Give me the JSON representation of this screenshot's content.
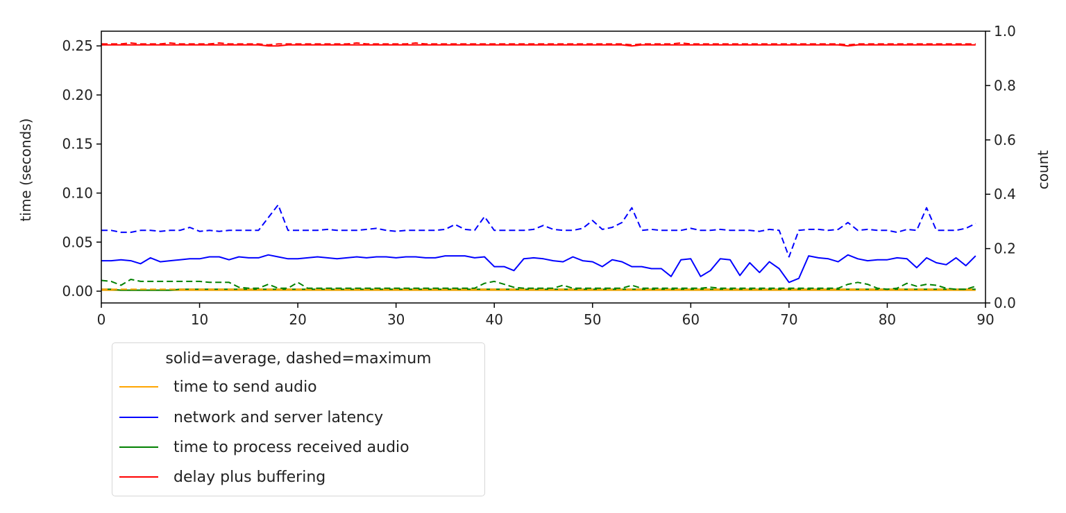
{
  "chart_data": {
    "type": "line",
    "title": "",
    "xlabel": "",
    "ylabel": "time (seconds)",
    "ylabel_right": "count",
    "xlim": [
      0,
      90
    ],
    "ylim": [
      -0.012,
      0.265
    ],
    "ylim_right": [
      0.0,
      1.0
    ],
    "x_ticks": [
      "0",
      "10",
      "20",
      "30",
      "40",
      "50",
      "60",
      "70",
      "80",
      "90"
    ],
    "y_ticks": [
      "0.00",
      "0.05",
      "0.10",
      "0.15",
      "0.20",
      "0.25"
    ],
    "y_ticks_right": [
      "0.0",
      "0.2",
      "0.4",
      "0.6",
      "0.8",
      "1.0"
    ],
    "grid": false,
    "legend_position": "below-left outside",
    "legend_title": "solid=average, dashed=maximum",
    "x": [
      0,
      1,
      2,
      3,
      4,
      5,
      6,
      7,
      8,
      9,
      10,
      11,
      12,
      13,
      14,
      15,
      16,
      17,
      18,
      19,
      20,
      21,
      22,
      23,
      24,
      25,
      26,
      27,
      28,
      29,
      30,
      31,
      32,
      33,
      34,
      35,
      36,
      37,
      38,
      39,
      40,
      41,
      42,
      43,
      44,
      45,
      46,
      47,
      48,
      49,
      50,
      51,
      52,
      53,
      54,
      55,
      56,
      57,
      58,
      59,
      60,
      61,
      62,
      63,
      64,
      65,
      66,
      67,
      68,
      69,
      70,
      71,
      72,
      73,
      74,
      75,
      76,
      77,
      78,
      79,
      80,
      81,
      82,
      83,
      84,
      85,
      86,
      87,
      88,
      89
    ],
    "series": [
      {
        "name": "time to send audio",
        "style": "solid",
        "stat": "average",
        "color": "#ffa500",
        "values": [
          0.001,
          0.001,
          0.001,
          0.001,
          0.001,
          0.001,
          0.001,
          0.001,
          0.001,
          0.001,
          0.001,
          0.001,
          0.001,
          0.001,
          0.001,
          0.001,
          0.001,
          0.001,
          0.001,
          0.001,
          0.001,
          0.001,
          0.001,
          0.001,
          0.001,
          0.001,
          0.001,
          0.001,
          0.001,
          0.001,
          0.001,
          0.001,
          0.001,
          0.001,
          0.001,
          0.001,
          0.001,
          0.001,
          0.001,
          0.001,
          0.001,
          0.001,
          0.001,
          0.001,
          0.001,
          0.001,
          0.001,
          0.001,
          0.001,
          0.001,
          0.001,
          0.001,
          0.001,
          0.001,
          0.001,
          0.001,
          0.001,
          0.001,
          0.001,
          0.001,
          0.001,
          0.001,
          0.001,
          0.001,
          0.001,
          0.001,
          0.001,
          0.001,
          0.001,
          0.001,
          0.001,
          0.001,
          0.001,
          0.001,
          0.001,
          0.001,
          0.001,
          0.001,
          0.001,
          0.001,
          0.001,
          0.001,
          0.001,
          0.001,
          0.001,
          0.001,
          0.001,
          0.001,
          0.001,
          0.001
        ]
      },
      {
        "name": "network and server latency",
        "style": "solid",
        "stat": "average",
        "color": "#0000ff",
        "values": [
          0.031,
          0.031,
          0.032,
          0.031,
          0.028,
          0.034,
          0.03,
          0.031,
          0.032,
          0.033,
          0.033,
          0.035,
          0.035,
          0.032,
          0.035,
          0.034,
          0.034,
          0.037,
          0.035,
          0.033,
          0.033,
          0.034,
          0.035,
          0.034,
          0.033,
          0.034,
          0.035,
          0.034,
          0.035,
          0.035,
          0.034,
          0.035,
          0.035,
          0.034,
          0.034,
          0.036,
          0.036,
          0.036,
          0.034,
          0.035,
          0.025,
          0.025,
          0.021,
          0.033,
          0.034,
          0.033,
          0.031,
          0.03,
          0.035,
          0.031,
          0.03,
          0.025,
          0.032,
          0.03,
          0.025,
          0.025,
          0.023,
          0.023,
          0.015,
          0.032,
          0.033,
          0.015,
          0.021,
          0.033,
          0.032,
          0.016,
          0.029,
          0.019,
          0.03,
          0.023,
          0.009,
          0.013,
          0.036,
          0.034,
          0.033,
          0.03,
          0.037,
          0.033,
          0.031,
          0.032,
          0.032,
          0.034,
          0.033,
          0.024,
          0.034,
          0.029,
          0.027,
          0.034,
          0.026,
          0.036
        ]
      },
      {
        "name": "time to process received audio",
        "style": "solid",
        "stat": "average",
        "color": "#008000",
        "values": [
          0.002,
          0.002,
          0.001,
          0.001,
          0.001,
          0.001,
          0.001,
          0.001,
          0.002,
          0.002,
          0.002,
          0.002,
          0.002,
          0.002,
          0.002,
          0.002,
          0.002,
          0.002,
          0.002,
          0.002,
          0.002,
          0.002,
          0.002,
          0.002,
          0.002,
          0.002,
          0.002,
          0.002,
          0.002,
          0.002,
          0.002,
          0.002,
          0.002,
          0.002,
          0.002,
          0.002,
          0.002,
          0.002,
          0.002,
          0.002,
          0.002,
          0.002,
          0.002,
          0.002,
          0.002,
          0.002,
          0.002,
          0.002,
          0.002,
          0.002,
          0.002,
          0.002,
          0.002,
          0.002,
          0.002,
          0.002,
          0.002,
          0.002,
          0.002,
          0.002,
          0.002,
          0.002,
          0.002,
          0.002,
          0.002,
          0.002,
          0.002,
          0.002,
          0.002,
          0.002,
          0.002,
          0.002,
          0.002,
          0.002,
          0.002,
          0.002,
          0.002,
          0.002,
          0.002,
          0.002,
          0.002,
          0.002,
          0.002,
          0.002,
          0.002,
          0.002,
          0.002,
          0.002,
          0.002,
          0.002
        ]
      },
      {
        "name": "delay plus buffering",
        "style": "solid",
        "stat": "average",
        "color": "#ff0000",
        "values": [
          0.251,
          0.251,
          0.251,
          0.251,
          0.251,
          0.251,
          0.251,
          0.251,
          0.251,
          0.251,
          0.251,
          0.251,
          0.251,
          0.251,
          0.251,
          0.251,
          0.251,
          0.25,
          0.25,
          0.251,
          0.251,
          0.251,
          0.251,
          0.251,
          0.251,
          0.251,
          0.251,
          0.251,
          0.251,
          0.251,
          0.251,
          0.251,
          0.251,
          0.251,
          0.251,
          0.251,
          0.251,
          0.251,
          0.251,
          0.251,
          0.251,
          0.251,
          0.251,
          0.251,
          0.251,
          0.251,
          0.251,
          0.251,
          0.251,
          0.251,
          0.251,
          0.251,
          0.251,
          0.251,
          0.25,
          0.251,
          0.251,
          0.251,
          0.251,
          0.251,
          0.251,
          0.251,
          0.251,
          0.251,
          0.251,
          0.251,
          0.251,
          0.251,
          0.251,
          0.251,
          0.251,
          0.251,
          0.251,
          0.251,
          0.251,
          0.251,
          0.25,
          0.251,
          0.251,
          0.251,
          0.251,
          0.251,
          0.251,
          0.251,
          0.251,
          0.251,
          0.251,
          0.251,
          0.251,
          0.251
        ]
      },
      {
        "name": "time to send audio (max)",
        "style": "dashed",
        "stat": "maximum",
        "color": "#ffa500",
        "values": [
          0.002,
          0.002,
          0.002,
          0.002,
          0.002,
          0.002,
          0.002,
          0.002,
          0.002,
          0.002,
          0.002,
          0.002,
          0.002,
          0.002,
          0.002,
          0.002,
          0.002,
          0.002,
          0.002,
          0.002,
          0.002,
          0.002,
          0.002,
          0.002,
          0.002,
          0.002,
          0.002,
          0.002,
          0.002,
          0.002,
          0.002,
          0.002,
          0.002,
          0.002,
          0.002,
          0.002,
          0.002,
          0.002,
          0.002,
          0.002,
          0.002,
          0.002,
          0.002,
          0.002,
          0.002,
          0.002,
          0.002,
          0.002,
          0.002,
          0.002,
          0.002,
          0.002,
          0.002,
          0.002,
          0.002,
          0.002,
          0.002,
          0.002,
          0.002,
          0.002,
          0.002,
          0.002,
          0.002,
          0.002,
          0.002,
          0.002,
          0.002,
          0.002,
          0.002,
          0.002,
          0.002,
          0.002,
          0.002,
          0.002,
          0.002,
          0.002,
          0.002,
          0.002,
          0.002,
          0.002,
          0.002,
          0.002,
          0.002,
          0.002,
          0.002,
          0.002,
          0.002,
          0.002,
          0.002,
          0.002
        ]
      },
      {
        "name": "network and server latency (max)",
        "style": "dashed",
        "stat": "maximum",
        "color": "#0000ff",
        "values": [
          0.062,
          0.062,
          0.06,
          0.06,
          0.062,
          0.062,
          0.061,
          0.062,
          0.062,
          0.065,
          0.061,
          0.062,
          0.061,
          0.062,
          0.062,
          0.062,
          0.062,
          0.075,
          0.088,
          0.062,
          0.062,
          0.062,
          0.062,
          0.063,
          0.062,
          0.062,
          0.062,
          0.063,
          0.064,
          0.062,
          0.061,
          0.062,
          0.062,
          0.062,
          0.062,
          0.063,
          0.068,
          0.063,
          0.062,
          0.076,
          0.062,
          0.062,
          0.062,
          0.062,
          0.063,
          0.067,
          0.063,
          0.062,
          0.062,
          0.064,
          0.072,
          0.063,
          0.065,
          0.07,
          0.085,
          0.062,
          0.063,
          0.062,
          0.062,
          0.062,
          0.064,
          0.062,
          0.062,
          0.063,
          0.062,
          0.062,
          0.062,
          0.061,
          0.063,
          0.062,
          0.035,
          0.062,
          0.063,
          0.063,
          0.062,
          0.063,
          0.07,
          0.062,
          0.063,
          0.062,
          0.062,
          0.06,
          0.063,
          0.062,
          0.085,
          0.062,
          0.062,
          0.062,
          0.064,
          0.069
        ]
      },
      {
        "name": "time to process received audio (max)",
        "style": "dashed",
        "stat": "maximum",
        "color": "#008000",
        "values": [
          0.011,
          0.01,
          0.006,
          0.012,
          0.01,
          0.01,
          0.01,
          0.01,
          0.01,
          0.01,
          0.01,
          0.009,
          0.009,
          0.009,
          0.004,
          0.003,
          0.003,
          0.007,
          0.003,
          0.003,
          0.009,
          0.003,
          0.003,
          0.003,
          0.003,
          0.003,
          0.003,
          0.003,
          0.003,
          0.003,
          0.003,
          0.003,
          0.003,
          0.003,
          0.003,
          0.003,
          0.003,
          0.003,
          0.003,
          0.008,
          0.01,
          0.007,
          0.004,
          0.003,
          0.003,
          0.003,
          0.003,
          0.006,
          0.003,
          0.003,
          0.003,
          0.003,
          0.003,
          0.003,
          0.006,
          0.003,
          0.003,
          0.003,
          0.003,
          0.003,
          0.003,
          0.003,
          0.004,
          0.003,
          0.003,
          0.003,
          0.003,
          0.003,
          0.003,
          0.003,
          0.003,
          0.003,
          0.003,
          0.003,
          0.003,
          0.003,
          0.007,
          0.009,
          0.007,
          0.003,
          0.002,
          0.003,
          0.008,
          0.005,
          0.007,
          0.006,
          0.003,
          0.002,
          0.002,
          0.005
        ]
      },
      {
        "name": "delay plus buffering (max)",
        "style": "dashed",
        "stat": "maximum",
        "color": "#ff0000",
        "values": [
          0.252,
          0.252,
          0.252,
          0.253,
          0.252,
          0.252,
          0.252,
          0.253,
          0.252,
          0.252,
          0.252,
          0.252,
          0.253,
          0.252,
          0.252,
          0.252,
          0.252,
          0.251,
          0.252,
          0.252,
          0.252,
          0.252,
          0.252,
          0.252,
          0.252,
          0.252,
          0.253,
          0.252,
          0.252,
          0.252,
          0.252,
          0.252,
          0.253,
          0.252,
          0.252,
          0.252,
          0.252,
          0.252,
          0.252,
          0.252,
          0.252,
          0.252,
          0.252,
          0.252,
          0.252,
          0.252,
          0.252,
          0.252,
          0.252,
          0.252,
          0.252,
          0.252,
          0.252,
          0.252,
          0.251,
          0.252,
          0.252,
          0.252,
          0.252,
          0.253,
          0.252,
          0.252,
          0.252,
          0.252,
          0.252,
          0.252,
          0.252,
          0.252,
          0.252,
          0.252,
          0.252,
          0.252,
          0.252,
          0.252,
          0.252,
          0.252,
          0.251,
          0.252,
          0.252,
          0.252,
          0.252,
          0.252,
          0.252,
          0.252,
          0.252,
          0.252,
          0.252,
          0.252,
          0.252,
          0.252
        ]
      }
    ]
  },
  "legend": {
    "title": "solid=average, dashed=maximum",
    "items": [
      {
        "label": "time to send audio",
        "color": "#ffa500"
      },
      {
        "label": "network and server latency",
        "color": "#0000ff"
      },
      {
        "label": "time to process received audio",
        "color": "#008000"
      },
      {
        "label": "delay plus buffering",
        "color": "#ff0000"
      }
    ]
  }
}
